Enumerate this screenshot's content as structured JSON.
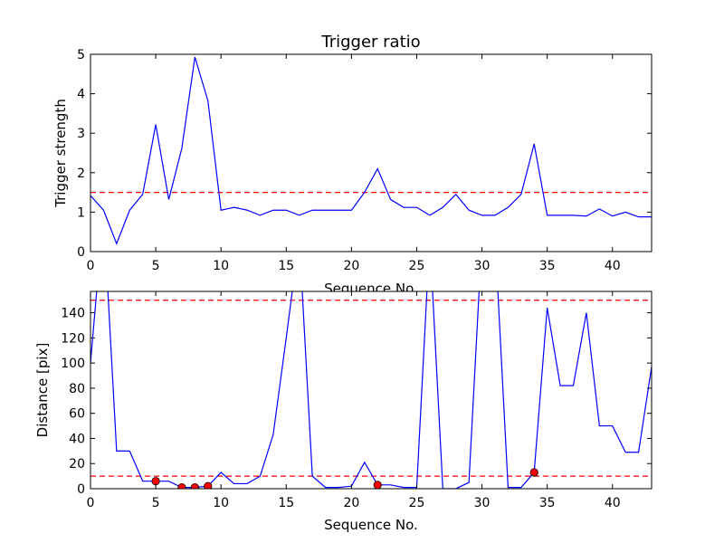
{
  "chart_data": [
    {
      "type": "line",
      "title": "Trigger ratio",
      "xlabel": "Sequence No.",
      "ylabel": "Trigger strength",
      "xlim": [
        0,
        43
      ],
      "ylim": [
        0,
        5
      ],
      "xticks": [
        0,
        5,
        10,
        15,
        20,
        25,
        30,
        35,
        40
      ],
      "yticks": [
        0,
        1,
        2,
        3,
        4,
        5
      ],
      "line_color": "#0000ff",
      "threshold": 1.5,
      "threshold_color": "#ff0000",
      "series": [
        {
          "x": [
            0,
            1,
            2,
            3,
            4,
            5,
            6,
            7,
            8,
            9,
            10,
            11,
            12,
            13,
            14,
            15,
            16,
            17,
            18,
            19,
            20,
            21,
            22,
            23,
            24,
            25,
            26,
            27,
            28,
            29,
            30,
            31,
            32,
            33,
            34,
            35,
            36,
            37,
            38,
            39,
            40,
            41,
            42,
            43
          ],
          "values": [
            1.42,
            1.05,
            0.2,
            1.05,
            1.45,
            3.22,
            1.32,
            2.62,
            4.93,
            3.82,
            1.05,
            1.12,
            1.05,
            0.92,
            1.05,
            1.05,
            0.92,
            1.05,
            1.05,
            1.05,
            1.05,
            1.5,
            2.1,
            1.32,
            1.12,
            1.12,
            0.92,
            1.12,
            1.45,
            1.05,
            0.92,
            0.92,
            1.12,
            1.45,
            2.73,
            0.92,
            0.92,
            0.92,
            0.9,
            1.08,
            0.9,
            1.0,
            0.88,
            0.88
          ]
        }
      ]
    },
    {
      "type": "line",
      "title": "",
      "xlabel": "Sequence No.",
      "ylabel": "Distance [pix]",
      "xlim": [
        0,
        43
      ],
      "ylim": [
        0,
        157
      ],
      "xticks": [
        0,
        5,
        10,
        15,
        20,
        25,
        30,
        35,
        40
      ],
      "yticks": [
        0,
        20,
        40,
        60,
        80,
        100,
        120,
        140
      ],
      "line_color": "#0000ff",
      "thresholds": [
        150,
        10
      ],
      "threshold_color": "#ff0000",
      "marker_color": "#ff0000",
      "series": [
        {
          "x": [
            0,
            1,
            2,
            3,
            4,
            5,
            6,
            7,
            8,
            9,
            10,
            11,
            12,
            13,
            14,
            15,
            16,
            17,
            18,
            19,
            20,
            21,
            22,
            23,
            24,
            25,
            26,
            27,
            28,
            29,
            30,
            31,
            32,
            33,
            34,
            35,
            36,
            37,
            38,
            39,
            40,
            41,
            42,
            43
          ],
          "values": [
            100,
            220,
            30,
            30,
            6,
            6,
            6,
            1,
            1,
            2,
            13,
            4,
            4,
            10,
            43,
            120,
            200,
            10,
            1,
            1,
            2,
            21,
            3,
            3,
            1,
            1,
            200,
            0,
            0,
            5,
            200,
            200,
            1,
            1,
            13,
            144,
            82,
            82,
            140,
            50,
            50,
            29,
            29,
            97
          ]
        }
      ],
      "markers": {
        "x": [
          5,
          7,
          8,
          9,
          22,
          34
        ],
        "values": [
          6,
          1,
          1,
          2,
          3,
          13
        ]
      }
    }
  ]
}
